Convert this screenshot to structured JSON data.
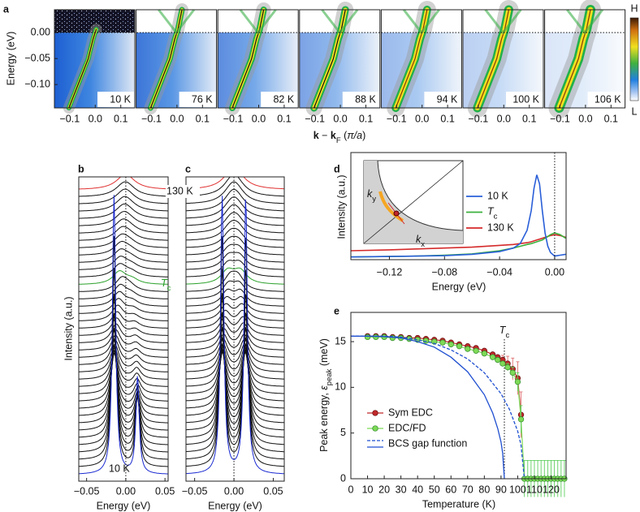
{
  "chart_data": [
    {
      "type": "spectral-maps",
      "panel": "a",
      "ylabel": "Energy (eV)",
      "xlabel": [
        {
          "text": "k",
          "style": "bold"
        },
        {
          "text": " − "
        },
        {
          "text": "k",
          "style": "bold"
        },
        {
          "text": "F",
          "style": "sub"
        },
        {
          "text": " ("
        },
        {
          "text": "π/a",
          "style": "italic"
        },
        {
          "text": ")"
        }
      ],
      "categories": [
        "10 K",
        "76 K",
        "82 K",
        "88 K",
        "94 K",
        "100 K",
        "106 K"
      ],
      "xlim": [
        -0.16,
        0.155
      ],
      "xticks": [
        {
          "value": -0.1,
          "label": "−0.1"
        },
        {
          "value": 0,
          "label": "0.0"
        },
        0.1
      ],
      "ylim": [
        -0.145,
        0.044
      ],
      "yticks": [
        {
          "value": 0,
          "label": "0.00"
        },
        {
          "value": -0.05,
          "label": "−0.05"
        },
        {
          "value": -0.1,
          "label": "−0.10"
        }
      ],
      "colorbar": {
        "high": "H",
        "low": "L"
      }
    },
    {
      "type": "edc-stack",
      "panel": "b",
      "symmetric": false,
      "xlabel": "Energy (eV)",
      "ylabel": "Intensity (a.u.)",
      "xlim": [
        -0.06,
        0.054
      ],
      "xticks": [
        {
          "value": -0.05,
          "label": "−0.05"
        },
        {
          "value": 0,
          "label": "0.00"
        },
        0.05
      ],
      "colors": [
        "#e03030",
        "#2aa02a",
        "#1a2ad0"
      ],
      "annotations": [
        {
          "text": "130 K"
        },
        {
          "text": "T",
          "sub": "c"
        },
        {
          "text": "10 K"
        }
      ]
    },
    {
      "type": "edc-stack",
      "panel": "c",
      "symmetric": true,
      "xlabel": "Energy (eV)",
      "xlim": [
        -0.061,
        0.064
      ],
      "xticks": [
        {
          "value": -0.05,
          "label": "−0.05"
        },
        {
          "value": 0,
          "label": "0.00"
        },
        0.05
      ],
      "colors": [
        "#e03030",
        "#2aa02a",
        "#1a2ad0"
      ]
    },
    {
      "type": "line",
      "panel": "d",
      "xlabel": "Energy (eV)",
      "ylabel": "Intensity (a.u.)",
      "xlim": [
        -0.148,
        0.0083
      ],
      "xticks": [
        {
          "value": -0.12,
          "label": "−0.12"
        },
        {
          "value": -0.08,
          "label": "−0.08"
        },
        {
          "value": -0.04,
          "label": "−0.04"
        },
        {
          "value": 0,
          "label": "0.00"
        }
      ],
      "ylim": [
        0,
        1.2
      ],
      "x": [
        -0.148,
        -0.12,
        -0.1,
        -0.08,
        -0.06,
        -0.04,
        -0.03,
        -0.025,
        -0.02,
        -0.017,
        -0.015,
        -0.013,
        -0.011,
        -0.009,
        -0.007,
        -0.005,
        -0.003,
        0,
        0.004,
        0.008
      ],
      "series": [
        {
          "name": "10 K",
          "color": "#2a5fd8",
          "values": [
            0.03,
            0.035,
            0.04,
            0.045,
            0.06,
            0.09,
            0.13,
            0.18,
            0.33,
            0.55,
            0.8,
            0.95,
            0.85,
            0.55,
            0.3,
            0.15,
            0.08,
            0.04,
            0.05,
            0.06
          ]
        },
        {
          "name": {
            "text": "T",
            "sub": "c"
          },
          "color": "#3bb03b",
          "values": [
            0.03,
            0.035,
            0.04,
            0.05,
            0.065,
            0.1,
            0.13,
            0.15,
            0.17,
            0.18,
            0.19,
            0.2,
            0.21,
            0.22,
            0.24,
            0.26,
            0.28,
            0.3,
            0.28,
            0.24
          ]
        },
        {
          "name": "130 K",
          "color": "#d42a2a",
          "values": [
            0.1,
            0.11,
            0.12,
            0.13,
            0.14,
            0.16,
            0.17,
            0.18,
            0.19,
            0.2,
            0.21,
            0.22,
            0.23,
            0.24,
            0.25,
            0.26,
            0.27,
            0.28,
            0.27,
            0.25
          ]
        }
      ],
      "inset": {
        "xlabel": {
          "text": "k",
          "sub": "x"
        },
        "ylabel": {
          "text": "k",
          "sub": "y"
        }
      }
    },
    {
      "type": "scatter-line",
      "panel": "e",
      "xlabel": "Temperature (K)",
      "ylabel": [
        {
          "text": "Peak energy, "
        },
        {
          "text": "ε",
          "style": "italic"
        },
        {
          "text": "peak",
          "style": "sub"
        },
        {
          "text": " (meV)"
        }
      ],
      "xlim": [
        0,
        129
      ],
      "xticks": [
        0,
        10,
        20,
        30,
        40,
        50,
        60,
        70,
        80,
        90,
        100,
        110,
        120
      ],
      "ylim": [
        0,
        18.2
      ],
      "yticks": [
        0,
        5,
        10,
        15
      ],
      "annotation": {
        "text": "T",
        "sub": "c",
        "x": 92
      },
      "series": [
        {
          "name": "Sym EDC",
          "color": "#c0282a",
          "x": [
            10,
            15,
            20,
            25,
            30,
            35,
            40,
            45,
            50,
            55,
            60,
            65,
            70,
            75,
            80,
            85,
            88,
            91,
            94,
            97,
            100,
            102
          ],
          "values": [
            15.6,
            15.6,
            15.6,
            15.5,
            15.5,
            15.4,
            15.4,
            15.3,
            15.2,
            15.1,
            14.9,
            14.7,
            14.5,
            14.3,
            14.0,
            13.6,
            13.3,
            13.0,
            12.6,
            12.0,
            11.0,
            7.0
          ],
          "errors": [
            0.2,
            0.2,
            0.2,
            0.2,
            0.2,
            0.2,
            0.2,
            0.2,
            0.2,
            0.2,
            0.2,
            0.2,
            0.2,
            0.2,
            0.2,
            0.2,
            0.2,
            0.5,
            0.8,
            1.2,
            1.8,
            2.5
          ]
        },
        {
          "name": "EDC/FD",
          "color": "#7ed957",
          "x": [
            10,
            15,
            20,
            25,
            30,
            35,
            40,
            45,
            50,
            55,
            60,
            65,
            70,
            75,
            80,
            85,
            88,
            91,
            94,
            97,
            100,
            102,
            104,
            106,
            108,
            110,
            112,
            114,
            116,
            118,
            120,
            122,
            124,
            126,
            128
          ],
          "values": [
            15.5,
            15.5,
            15.5,
            15.4,
            15.4,
            15.3,
            15.2,
            15.1,
            15.0,
            14.9,
            14.7,
            14.5,
            14.2,
            14.0,
            13.7,
            13.3,
            13.0,
            12.6,
            12.2,
            11.6,
            10.6,
            6.5,
            0,
            0,
            0,
            0,
            0,
            0,
            0,
            0,
            0,
            0,
            0,
            0,
            0
          ],
          "errors": [
            0.2,
            0.2,
            0.2,
            0.2,
            0.2,
            0.2,
            0.2,
            0.2,
            0.2,
            0.2,
            0.2,
            0.2,
            0.2,
            0.2,
            0.2,
            0.2,
            0.2,
            0.2,
            0.4,
            0.6,
            1.0,
            1.5,
            2,
            2,
            2,
            2,
            2,
            2,
            2,
            2,
            2,
            2,
            2,
            2,
            2
          ]
        },
        {
          "name": "BCS gap function",
          "color": "#1f4fd0",
          "curves": [
            {
              "style": "dashed",
              "x": [
                0,
                10,
                20,
                30,
                40,
                50,
                60,
                70,
                80,
                90,
                95,
                100,
                102,
                104
              ],
              "values": [
                15.6,
                15.6,
                15.6,
                15.5,
                15.2,
                14.8,
                14.1,
                13.1,
                11.6,
                9.3,
                7.6,
                5.2,
                3.7,
                0
              ]
            },
            {
              "style": "solid",
              "x": [
                0,
                10,
                20,
                30,
                40,
                50,
                60,
                70,
                80,
                85,
                88,
                90,
                91,
                92
              ],
              "values": [
                15.6,
                15.6,
                15.55,
                15.4,
                15.0,
                14.4,
                13.3,
                11.7,
                9.2,
                7.2,
                5.5,
                4.0,
                2.8,
                0
              ]
            }
          ]
        }
      ]
    }
  ]
}
